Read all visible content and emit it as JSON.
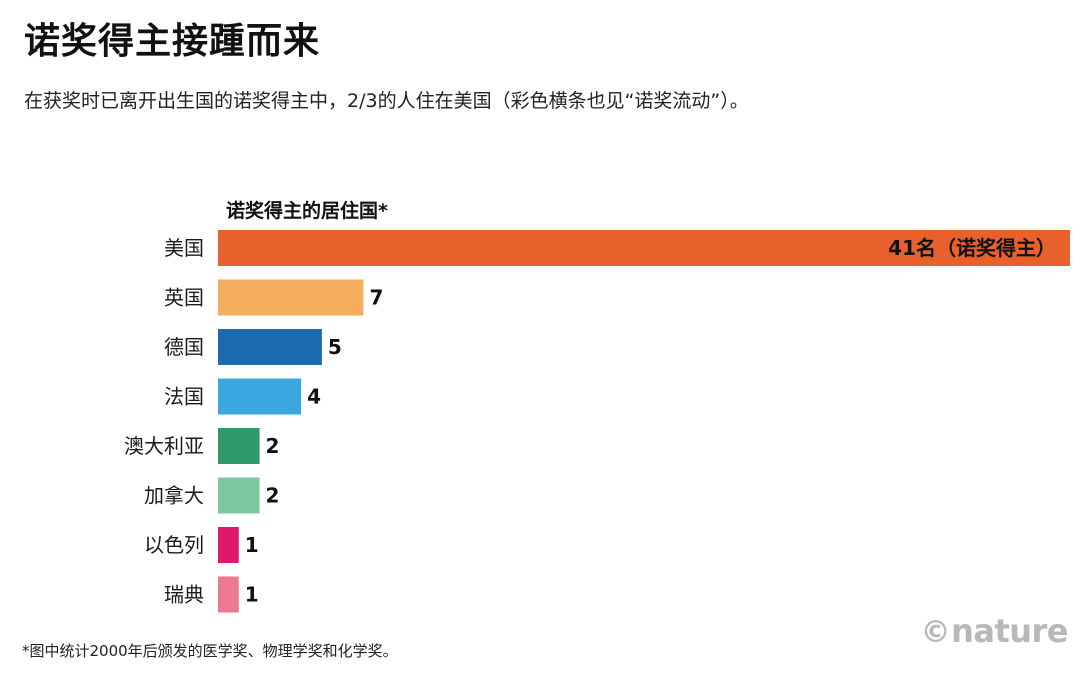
{
  "title": "诺奖得主接踵而来",
  "subtitle": "在获奖时已离开出生国的诺奖得主中，2/3的人住在美国（彩色横条也见“诺奖流动”）。",
  "footnote": "*图中统计2000年后颁发的医学奖、物理学奖和化学奖。",
  "brand": {
    "symbol": "©",
    "name": "nature"
  },
  "chart_data": {
    "type": "bar",
    "orientation": "horizontal",
    "title": "诺奖得主的居住国*",
    "categories": [
      "美国",
      "英国",
      "德国",
      "法国",
      "澳大利亚",
      "加拿大",
      "以色列",
      "瑞典"
    ],
    "values": [
      41,
      7,
      5,
      4,
      2,
      2,
      1,
      1
    ],
    "value_labels": [
      "41名（诺奖得主）",
      "7",
      "5",
      "4",
      "2",
      "2",
      "1",
      "1"
    ],
    "colors": [
      "#e8612c",
      "#f5ad5e",
      "#1c6bb0",
      "#3aa8de",
      "#2e9a6a",
      "#7fc89e",
      "#e0186b",
      "#ec7a8e"
    ],
    "xlim": [
      0,
      41
    ],
    "grid": false,
    "legend": "none"
  }
}
